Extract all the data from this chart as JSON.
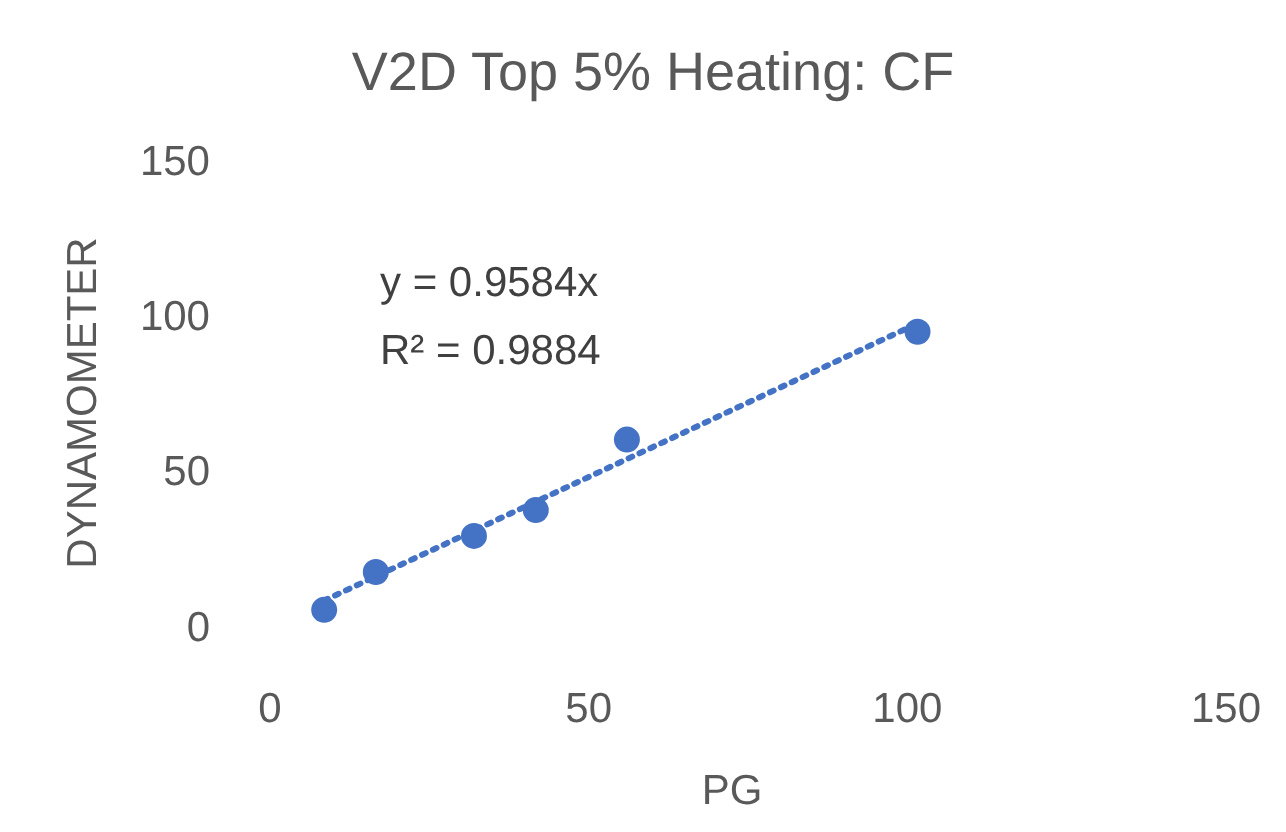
{
  "chart_data": {
    "type": "scatter",
    "title": "V2D Top 5% Heating: CF",
    "xlabel": "PG",
    "ylabel": "DYNAMOMETER",
    "xlim": [
      0,
      150
    ],
    "ylim": [
      0,
      150
    ],
    "xticks": [
      0,
      50,
      100,
      150
    ],
    "yticks": [
      0,
      50,
      100,
      150
    ],
    "grid": false,
    "marker": "circle",
    "series": [
      {
        "color": "#4472c4",
        "x": [
          8.5,
          16.6,
          32,
          41.7,
          56,
          101.6
        ],
        "values": [
          5.2,
          17.4,
          29,
          37.3,
          60,
          94.7
        ]
      },
      {
        "type": "line",
        "color": "#4472c4",
        "line_style": "dotted",
        "marker": "none",
        "x": [
          8.5,
          101.6
        ],
        "values": [
          8.2,
          97.4
        ]
      }
    ],
    "annotations": [
      "y = 0.9584x",
      "R² = 0.9884"
    ]
  }
}
